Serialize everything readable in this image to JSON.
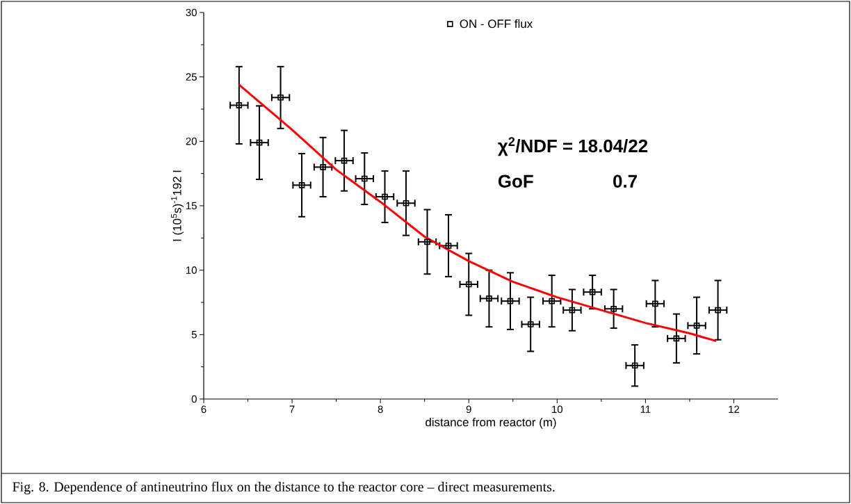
{
  "chart_data": {
    "type": "scatter",
    "xlabel": "distance from reactor (m)",
    "ylabel": "I (10$^{5}$s)$^{-1}$192 I",
    "xlim": [
      6,
      12.5
    ],
    "xticks": [
      6,
      7,
      8,
      9,
      10,
      11,
      12
    ],
    "ylim": [
      0,
      30
    ],
    "yticks": [
      0,
      5,
      10,
      15,
      20,
      25,
      30
    ],
    "legend": "top",
    "marker": "square",
    "grid": false,
    "series": [
      {
        "name": "ON - OFF flux",
        "color": "#000000",
        "x": [
          6.4,
          6.63,
          6.87,
          7.11,
          7.35,
          7.59,
          7.82,
          8.05,
          8.29,
          8.53,
          8.77,
          9.0,
          9.23,
          9.47,
          9.7,
          9.94,
          10.17,
          10.4,
          10.64,
          10.88,
          11.11,
          11.35,
          11.58,
          11.82
        ],
        "values": [
          22.8,
          19.9,
          23.4,
          16.6,
          18.0,
          18.5,
          17.1,
          15.7,
          15.2,
          12.2,
          11.9,
          8.9,
          7.8,
          7.6,
          5.8,
          7.6,
          6.9,
          8.3,
          7.0,
          2.6,
          7.4,
          4.7,
          5.7,
          6.9
        ],
        "errors": [
          3.0,
          2.85,
          2.4,
          2.45,
          2.3,
          2.35,
          2.0,
          2.0,
          2.5,
          2.5,
          2.4,
          2.4,
          2.2,
          2.2,
          2.1,
          2.0,
          1.6,
          1.3,
          1.5,
          1.6,
          1.8,
          1.9,
          2.2,
          2.3
        ],
        "xerrors": [
          0.1,
          0.1,
          0.1,
          0.1,
          0.1,
          0.1,
          0.1,
          0.1,
          0.1,
          0.1,
          0.1,
          0.1,
          0.1,
          0.1,
          0.1,
          0.1,
          0.1,
          0.1,
          0.1,
          0.1,
          0.1,
          0.1,
          0.1,
          0.1
        ]
      },
      {
        "type": "line",
        "color": "#ff0000",
        "marker": "none",
        "x": [
          6.4,
          7.0,
          7.5,
          8.0,
          8.5,
          9.0,
          9.5,
          10.0,
          10.5,
          11.0,
          11.5,
          11.8
        ],
        "values": [
          24.4,
          20.9,
          17.8,
          15.3,
          12.6,
          10.7,
          9.1,
          7.9,
          6.9,
          5.9,
          5.1,
          4.5
        ]
      }
    ],
    "annotations": [
      "**χ$^{2}$/NDF  =  18.04/22**",
      "**GoF**",
      "**0.7**",
      "Fig. 8. Dependence of antineutrino flux on the distance to the reactor core – direct measurements."
    ]
  }
}
